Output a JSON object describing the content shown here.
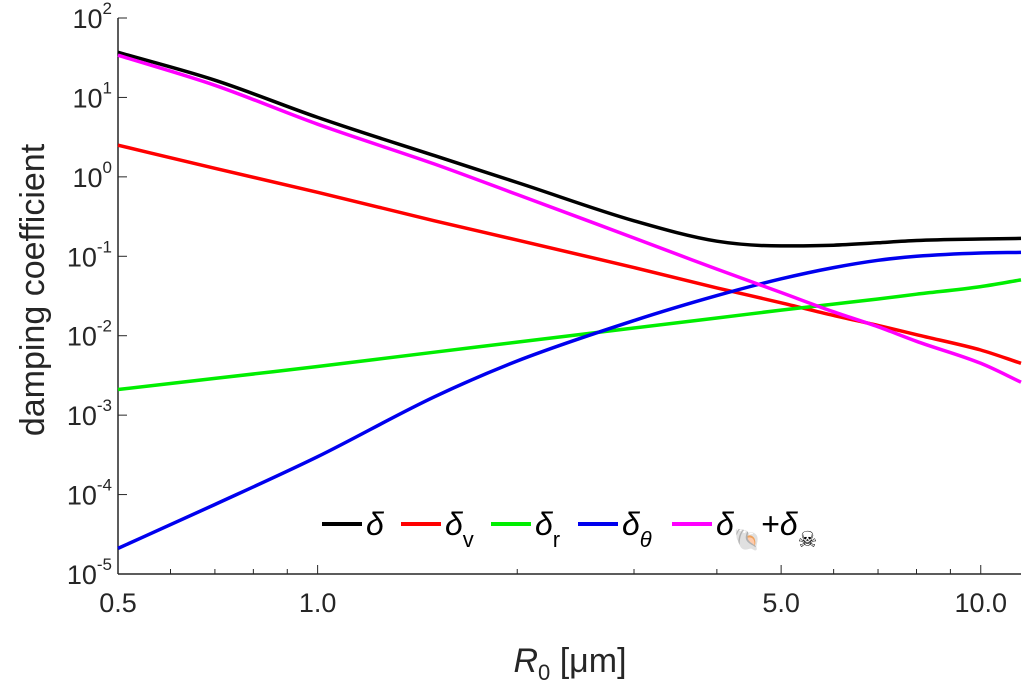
{
  "chart_data": {
    "type": "line",
    "xscale": "log",
    "yscale": "log",
    "xlim": [
      0.5,
      11.5
    ],
    "ylim": [
      1e-05,
      100
    ],
    "grid": false,
    "legend_placement": "bottom-center",
    "xlabel": {
      "main": "R",
      "sub": "0",
      "unit": " [μm]"
    },
    "ylabel": "damping coefficient",
    "x_ticks": [
      {
        "value": 0.5,
        "label": "0.5"
      },
      {
        "value": 1.0,
        "label": "1.0"
      },
      {
        "value": 5.0,
        "label": "5.0"
      },
      {
        "value": 10.0,
        "label": "10.0"
      }
    ],
    "y_ticks": [
      {
        "value": 1e-05,
        "base": "10",
        "exp": "-5"
      },
      {
        "value": 0.0001,
        "base": "10",
        "exp": "-4"
      },
      {
        "value": 0.001,
        "base": "10",
        "exp": "-3"
      },
      {
        "value": 0.01,
        "base": "10",
        "exp": "-2"
      },
      {
        "value": 0.1,
        "base": "10",
        "exp": "-1"
      },
      {
        "value": 1,
        "base": "10",
        "exp": "0"
      },
      {
        "value": 10,
        "base": "10",
        "exp": "1"
      },
      {
        "value": 100,
        "base": "10",
        "exp": "2"
      }
    ],
    "x": [
      0.5,
      0.7,
      1.0,
      1.5,
      2.0,
      3.0,
      4.0,
      5.0,
      6.0,
      7.0,
      8.0,
      10.0,
      11.5
    ],
    "series": [
      {
        "key": "delta",
        "color": "#000000",
        "values": [
          37,
          16.5,
          5.6,
          1.85,
          0.85,
          0.28,
          0.155,
          0.135,
          0.138,
          0.148,
          0.158,
          0.165,
          0.168
        ]
      },
      {
        "key": "delta_v",
        "color": "#ff0000",
        "values": [
          2.5,
          1.28,
          0.64,
          0.28,
          0.16,
          0.072,
          0.04,
          0.026,
          0.018,
          0.0135,
          0.0103,
          0.0066,
          0.0045
        ]
      },
      {
        "key": "delta_r",
        "color": "#00ee00",
        "values": [
          0.0021,
          0.0029,
          0.0041,
          0.0062,
          0.0083,
          0.0125,
          0.0167,
          0.021,
          0.025,
          0.029,
          0.0333,
          0.0415,
          0.0505
        ]
      },
      {
        "key": "delta_theta",
        "color": "#0000ee",
        "values": [
          2.1e-05,
          7.5e-05,
          0.0003,
          0.0017,
          0.0048,
          0.0155,
          0.032,
          0.052,
          0.072,
          0.089,
          0.1,
          0.11,
          0.112
        ]
      },
      {
        "key": "delta_nr",
        "color": "#ff00ff",
        "values": [
          34,
          14.2,
          4.6,
          1.45,
          0.6,
          0.17,
          0.069,
          0.035,
          0.02,
          0.013,
          0.0085,
          0.0045,
          0.0026
        ]
      }
    ],
    "legend": [
      {
        "series": "delta",
        "symbol": "δ",
        "sub": ""
      },
      {
        "series": "delta_v",
        "symbol": "δ",
        "sub": "v"
      },
      {
        "series": "delta_r",
        "symbol": "δ",
        "sub": "r"
      },
      {
        "series": "delta_theta",
        "symbol": "δ",
        "sub": "θ"
      },
      {
        "series": "delta_nr",
        "symbol": "δ",
        "sub": "🐚",
        "joiner": "+",
        "symbol2": "δ",
        "sub2": "☠"
      }
    ]
  }
}
